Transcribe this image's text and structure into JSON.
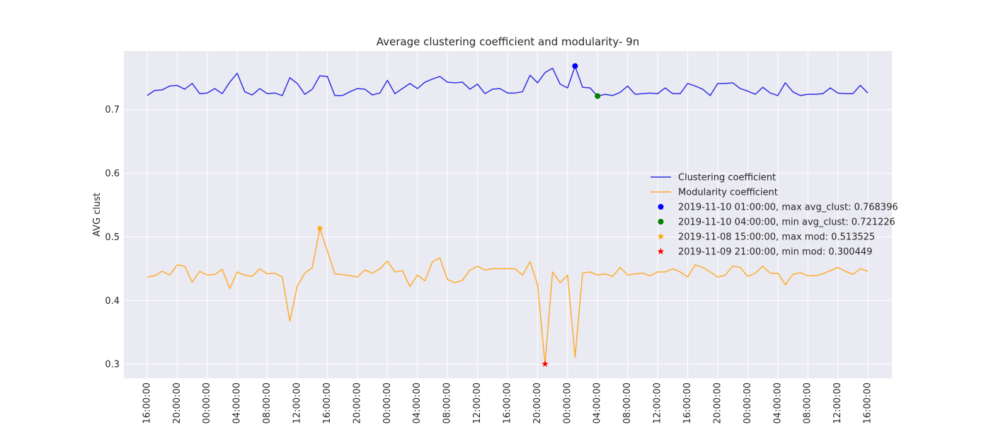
{
  "colors": {
    "clustering": "#3030e6",
    "modularity": "#ffab2e",
    "max_clust": "#0000ff",
    "min_clust": "#008000",
    "max_mod": "#ffa500",
    "min_mod": "#ff0000",
    "plot_bg": "#eaeaf2",
    "grid": "#ffffff"
  },
  "chart_data": {
    "type": "line",
    "title": "Average clustering coefficient and modularity- 9n",
    "ylabel": "AVG clust",
    "xlabel": "",
    "ylim": [
      0.278,
      0.792
    ],
    "yticks": [
      0.3,
      0.4,
      0.5,
      0.6,
      0.7
    ],
    "ytick_labels": [
      "0.3",
      "0.4",
      "0.5",
      "0.6",
      "0.7"
    ],
    "x_start": "2019-11-07 16:00:00",
    "x_step_hours": 1,
    "xticks_hours": [
      0,
      4,
      8,
      12,
      16,
      20,
      24,
      28,
      32,
      36,
      40,
      44,
      48,
      52,
      56,
      60,
      64,
      68,
      72,
      76,
      80,
      84,
      88,
      92,
      96
    ],
    "xtick_labels": [
      "7 16:00:00",
      "7 20:00:00",
      "8 00:00:00",
      "8 04:00:00",
      "8 08:00:00",
      "8 12:00:00",
      "8 16:00:00",
      "8 20:00:00",
      "9 00:00:00",
      "9 04:00:00",
      "9 08:00:00",
      "9 12:00:00",
      "9 16:00:00",
      "9 20:00:00",
      "0 00:00:00",
      "0 04:00:00",
      "0 08:00:00",
      "0 12:00:00",
      "0 16:00:00",
      "0 20:00:00",
      "1 00:00:00",
      "1 04:00:00",
      "1 08:00:00",
      "1 12:00:00",
      "1 16:00:00"
    ],
    "series": [
      {
        "name": "Clustering coefficient",
        "values": [
          0.722,
          0.73,
          0.731,
          0.737,
          0.738,
          0.732,
          0.741,
          0.725,
          0.726,
          0.733,
          0.725,
          0.743,
          0.757,
          0.728,
          0.723,
          0.733,
          0.725,
          0.726,
          0.722,
          0.75,
          0.741,
          0.724,
          0.732,
          0.753,
          0.752,
          0.722,
          0.722,
          0.728,
          0.733,
          0.732,
          0.723,
          0.726,
          0.746,
          0.725,
          0.733,
          0.741,
          0.733,
          0.743,
          0.748,
          0.752,
          0.743,
          0.742,
          0.743,
          0.732,
          0.74,
          0.725,
          0.732,
          0.733,
          0.726,
          0.726,
          0.728,
          0.754,
          0.742,
          0.758,
          0.765,
          0.74,
          0.734,
          0.768,
          0.735,
          0.734,
          0.721,
          0.724,
          0.722,
          0.727,
          0.737,
          0.724,
          0.725,
          0.726,
          0.725,
          0.734,
          0.725,
          0.725,
          0.741,
          0.737,
          0.732,
          0.722,
          0.741,
          0.741,
          0.742,
          0.733,
          0.729,
          0.724,
          0.735,
          0.726,
          0.722,
          0.742,
          0.728,
          0.722,
          0.724,
          0.724,
          0.725,
          0.734,
          0.726,
          0.725,
          0.725,
          0.738,
          0.726
        ]
      },
      {
        "name": "Modularity coefficient",
        "values": [
          0.437,
          0.439,
          0.446,
          0.44,
          0.456,
          0.454,
          0.429,
          0.446,
          0.44,
          0.441,
          0.449,
          0.419,
          0.445,
          0.44,
          0.438,
          0.45,
          0.442,
          0.443,
          0.437,
          0.368,
          0.423,
          0.443,
          0.452,
          0.513,
          0.478,
          0.442,
          0.441,
          0.439,
          0.437,
          0.448,
          0.443,
          0.45,
          0.462,
          0.445,
          0.447,
          0.422,
          0.44,
          0.431,
          0.461,
          0.467,
          0.433,
          0.428,
          0.432,
          0.448,
          0.454,
          0.448,
          0.45,
          0.45,
          0.45,
          0.45,
          0.44,
          0.461,
          0.425,
          0.3,
          0.445,
          0.428,
          0.44,
          0.311,
          0.443,
          0.445,
          0.44,
          0.442,
          0.438,
          0.452,
          0.44,
          0.442,
          0.443,
          0.439,
          0.445,
          0.445,
          0.45,
          0.445,
          0.437,
          0.456,
          0.452,
          0.445,
          0.437,
          0.44,
          0.454,
          0.452,
          0.438,
          0.443,
          0.454,
          0.443,
          0.443,
          0.425,
          0.441,
          0.444,
          0.439,
          0.439,
          0.442,
          0.447,
          0.452,
          0.446,
          0.441,
          0.45,
          0.446
        ]
      }
    ],
    "markers": [
      {
        "label": "2019-11-10 01:00:00, max avg_clust: 0.768396",
        "x_hours": 57,
        "y": 0.768396,
        "shape": "circle",
        "color_key": "max_clust"
      },
      {
        "label": "2019-11-10 04:00:00, min avg_clust: 0.721226",
        "x_hours": 60,
        "y": 0.721226,
        "shape": "circle",
        "color_key": "min_clust"
      },
      {
        "label": "2019-11-08 15:00:00, max mod: 0.513525",
        "x_hours": 23,
        "y": 0.513525,
        "shape": "star",
        "color_key": "max_mod"
      },
      {
        "label": "2019-11-09 21:00:00, min mod: 0.300449",
        "x_hours": 53,
        "y": 0.300449,
        "shape": "star",
        "color_key": "min_mod"
      }
    ],
    "grid": true,
    "legend_position": "center-right"
  }
}
